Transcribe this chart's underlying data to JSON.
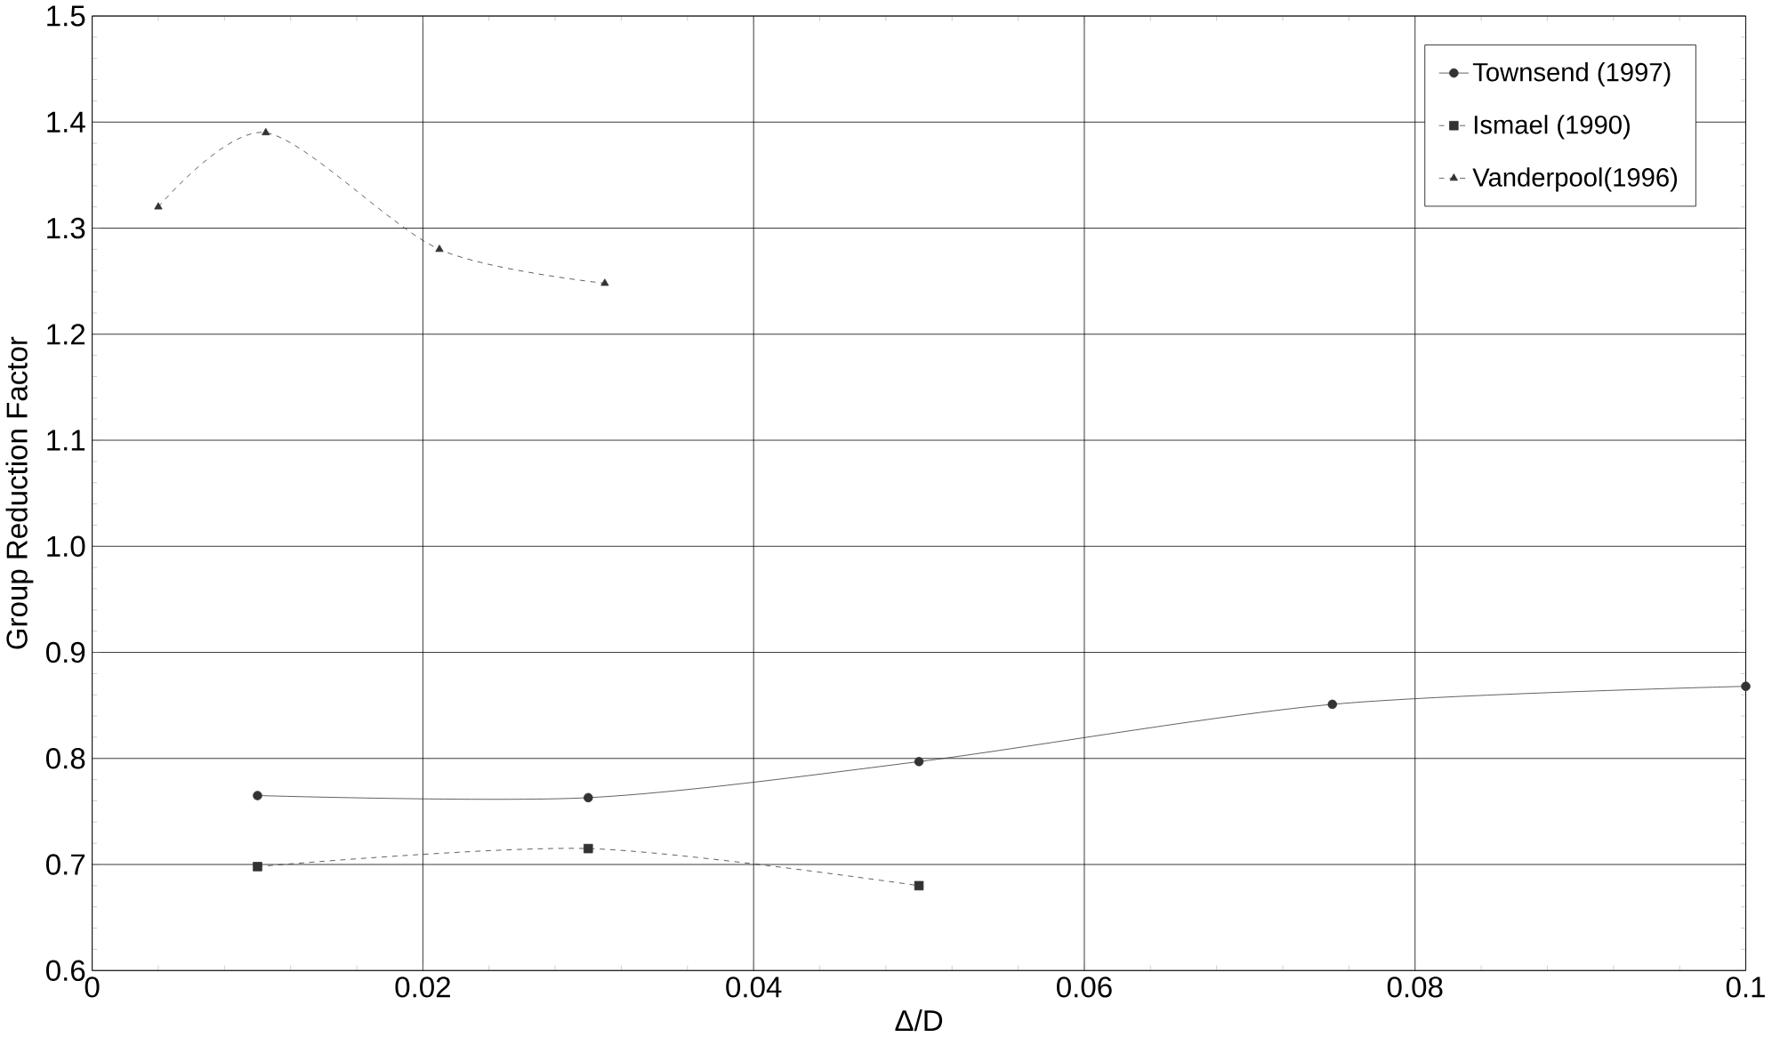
{
  "chart_data": {
    "type": "line",
    "xlabel": "Δ/D",
    "ylabel": "Group Reduction Factor",
    "xlim": [
      0,
      0.1
    ],
    "xticks": [
      0,
      0.02,
      0.04,
      0.06,
      0.08,
      0.1
    ],
    "ylim": [
      0.6,
      1.5
    ],
    "yticks": [
      {
        "value": 0.6,
        "label": "0.6"
      },
      {
        "value": 0.7,
        "label": "0.7"
      },
      {
        "value": 0.8,
        "label": "0.8"
      },
      {
        "value": 0.9,
        "label": "0.9"
      },
      {
        "value": 1.0,
        "label": "1.0"
      },
      {
        "value": 1.1,
        "label": "1.1"
      },
      {
        "value": 1.2,
        "label": "1.2"
      },
      {
        "value": 1.3,
        "label": "1.3"
      },
      {
        "value": 1.4,
        "label": "1.4"
      },
      {
        "value": 1.5,
        "label": "1.5"
      }
    ],
    "grid": true,
    "legend": "top right",
    "series": [
      {
        "name": "Townsend (1997)",
        "color": "#333333",
        "marker": "circle",
        "line_style": "solid",
        "x": [
          0.01,
          0.03,
          0.05,
          0.075,
          0.1
        ],
        "values": [
          0.765,
          0.763,
          0.797,
          0.851,
          0.868
        ]
      },
      {
        "name": "Ismael (1990)",
        "color": "#333333",
        "marker": "square",
        "line_style": "dashed",
        "x": [
          0.01,
          0.03,
          0.05
        ],
        "values": [
          0.698,
          0.715,
          0.68
        ]
      },
      {
        "name": "Vanderpool(1996)",
        "color": "#333333",
        "marker": "triangle",
        "line_style": "dashed",
        "x": [
          0.004,
          0.0105,
          0.021,
          0.031
        ],
        "values": [
          1.32,
          1.39,
          1.28,
          1.248
        ]
      }
    ]
  }
}
